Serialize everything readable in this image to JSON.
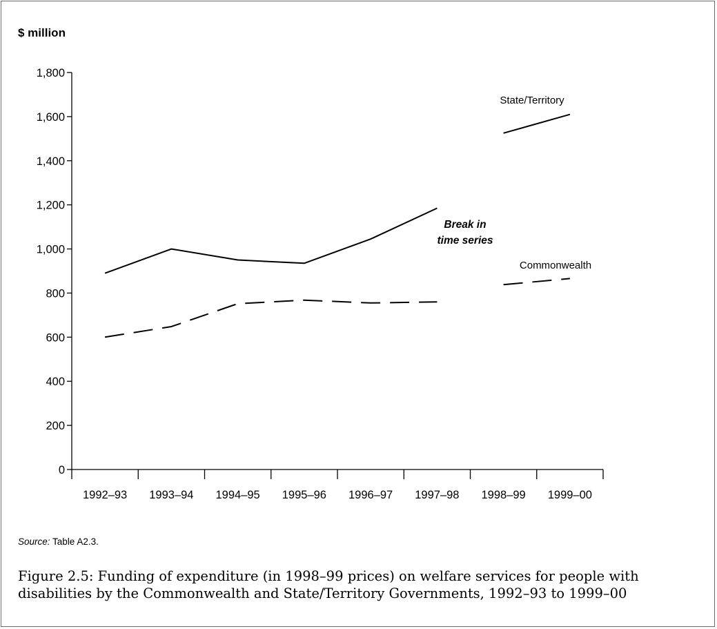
{
  "chart_data": {
    "type": "line",
    "ylabel": "$ million",
    "ylim": [
      0,
      1800
    ],
    "yticks": [
      "0",
      "200",
      "400",
      "600",
      "800",
      "1,000",
      "1,200",
      "1,400",
      "1,600",
      "1,800"
    ],
    "ytick_values": [
      0,
      200,
      400,
      600,
      800,
      1000,
      1200,
      1400,
      1600,
      1800
    ],
    "categories": [
      "1992–93",
      "1993–94",
      "1994–95",
      "1995–96",
      "1996–97",
      "1997–98",
      "1998–99",
      "1999–00"
    ],
    "series": [
      {
        "name": "State/Territory",
        "style": "solid",
        "values": [
          890,
          1000,
          950,
          935,
          1045,
          1185,
          1525,
          1610
        ]
      },
      {
        "name": "Commonwealth",
        "style": "dashed",
        "values": [
          600,
          648,
          752,
          768,
          755,
          760,
          838,
          866
        ]
      }
    ],
    "annotation": {
      "line1": "Break in",
      "line2": "time series"
    },
    "grid": false,
    "legend": "inline labels",
    "colors": {
      "line": "#000000",
      "axis": "#000000"
    }
  },
  "source": {
    "label": "Source:",
    "text": "Table A2.3."
  },
  "caption": "Figure 2.5: Funding of expenditure (in 1998–99 prices) on welfare services for people with disabilities by the Commonwealth and State/Territory Governments, 1992–93 to 1999–00"
}
